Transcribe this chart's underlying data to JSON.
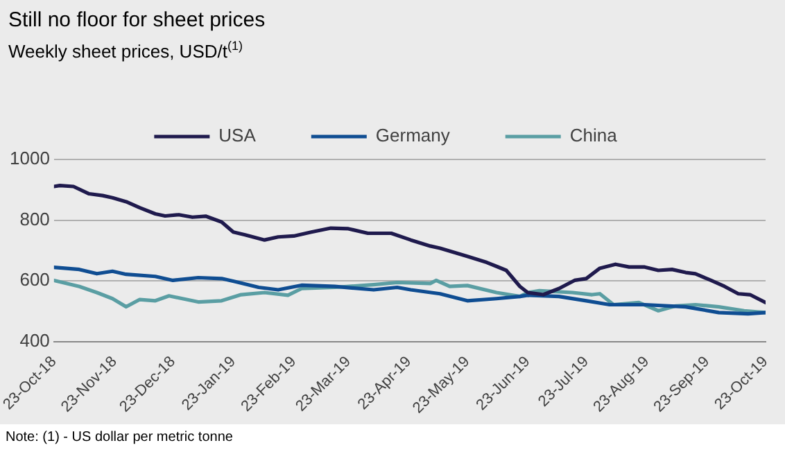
{
  "chart_data": {
    "type": "line",
    "title": "Still no floor for sheet prices",
    "subtitle": "Weekly sheet prices, USD/t$^{(1)}$",
    "annotations": [
      "Note: (1) - US dollar per metric tonne"
    ],
    "xlim": [
      "2018-10-23",
      "2019-10-23"
    ],
    "xticks": [
      {
        "value": "2018-10-23",
        "label": "23-Oct-18"
      },
      {
        "value": "2018-11-23",
        "label": "23-Nov-18"
      },
      {
        "value": "2018-12-23",
        "label": "23-Dec-18"
      },
      {
        "value": "2019-01-23",
        "label": "23-Jan-19"
      },
      {
        "value": "2019-02-23",
        "label": "23-Feb-19"
      },
      {
        "value": "2019-03-23",
        "label": "23-Mar-19"
      },
      {
        "value": "2019-04-23",
        "label": "23-Apr-19"
      },
      {
        "value": "2019-05-23",
        "label": "23-May-19"
      },
      {
        "value": "2019-06-23",
        "label": "23-Jun-19"
      },
      {
        "value": "2019-07-23",
        "label": "23-Jul-19"
      },
      {
        "value": "2019-08-23",
        "label": "23-Aug-19"
      },
      {
        "value": "2019-09-23",
        "label": "23-Sep-19"
      },
      {
        "value": "2019-10-23",
        "label": "23-Oct-19"
      }
    ],
    "ylim": [
      400,
      1000
    ],
    "yticks": [
      400,
      600,
      800,
      1000
    ],
    "grid": "y",
    "legend": "top",
    "marker": "none",
    "line_style": "solid",
    "series": [
      {
        "name": "USA",
        "color": "#1f1a4d",
        "x": [
          "2018-10-23",
          "2018-10-26",
          "2018-11-02",
          "2018-11-10",
          "2018-11-17",
          "2018-11-22",
          "2018-11-29",
          "2018-12-06",
          "2018-12-14",
          "2018-12-19",
          "2018-12-26",
          "2019-01-02",
          "2019-01-09",
          "2019-01-17",
          "2019-01-23",
          "2019-01-29",
          "2019-02-05",
          "2019-02-08",
          "2019-02-15",
          "2019-02-23",
          "2019-03-04",
          "2019-03-14",
          "2019-03-23",
          "2019-04-02",
          "2019-04-14",
          "2019-04-24",
          "2019-05-04",
          "2019-05-09",
          "2019-05-23",
          "2019-06-02",
          "2019-06-07",
          "2019-06-12",
          "2019-06-19",
          "2019-06-23",
          "2019-07-01",
          "2019-07-09",
          "2019-07-17",
          "2019-07-23",
          "2019-07-30",
          "2019-08-07",
          "2019-08-14",
          "2019-08-22",
          "2019-08-29",
          "2019-09-05",
          "2019-09-12",
          "2019-09-17",
          "2019-09-25",
          "2019-10-02",
          "2019-10-09",
          "2019-10-15",
          "2019-10-23"
        ],
        "values": [
          911,
          914,
          911,
          887,
          881,
          874,
          861,
          841,
          821,
          814,
          818,
          810,
          813,
          794,
          761,
          752,
          740,
          735,
          745,
          748,
          761,
          774,
          772,
          757,
          757,
          735,
          715,
          708,
          681,
          661,
          648,
          635,
          582,
          562,
          555,
          575,
          602,
          608,
          642,
          655,
          646,
          646,
          635,
          638,
          628,
          624,
          602,
          582,
          558,
          555,
          529
        ]
      },
      {
        "name": "Germany",
        "color": "#0f4d92",
        "x": [
          "2018-10-23",
          "2018-11-05",
          "2018-11-14",
          "2018-11-22",
          "2018-11-29",
          "2018-12-14",
          "2018-12-23",
          "2019-01-05",
          "2019-01-17",
          "2019-01-24",
          "2019-02-05",
          "2019-02-15",
          "2019-02-27",
          "2019-03-16",
          "2019-04-05",
          "2019-04-17",
          "2019-04-24",
          "2019-05-09",
          "2019-05-23",
          "2019-06-07",
          "2019-06-19",
          "2019-06-23",
          "2019-07-09",
          "2019-07-23",
          "2019-08-04",
          "2019-08-22",
          "2019-09-12",
          "2019-09-29",
          "2019-10-14",
          "2019-10-23"
        ],
        "values": [
          645,
          638,
          624,
          632,
          622,
          615,
          602,
          611,
          608,
          598,
          579,
          571,
          586,
          582,
          571,
          579,
          571,
          558,
          535,
          542,
          549,
          553,
          549,
          535,
          522,
          522,
          515,
          496,
          492,
          496
        ]
      },
      {
        "name": "China",
        "color": "#5a9ea3",
        "x": [
          "2018-10-23",
          "2018-11-05",
          "2018-11-14",
          "2018-11-22",
          "2018-11-29",
          "2018-12-06",
          "2018-12-14",
          "2018-12-21",
          "2019-01-05",
          "2019-01-17",
          "2019-01-27",
          "2019-02-08",
          "2019-02-20",
          "2019-02-27",
          "2019-03-16",
          "2019-04-05",
          "2019-04-17",
          "2019-05-04",
          "2019-05-07",
          "2019-05-14",
          "2019-05-23",
          "2019-06-07",
          "2019-06-19",
          "2019-06-23",
          "2019-06-29",
          "2019-07-16",
          "2019-07-26",
          "2019-07-30",
          "2019-08-06",
          "2019-08-19",
          "2019-08-29",
          "2019-09-07",
          "2019-09-17",
          "2019-09-29",
          "2019-10-12",
          "2019-10-23"
        ],
        "values": [
          602,
          582,
          562,
          542,
          515,
          539,
          535,
          551,
          531,
          535,
          555,
          562,
          553,
          575,
          579,
          588,
          595,
          592,
          602,
          582,
          585,
          562,
          549,
          562,
          568,
          562,
          555,
          558,
          522,
          529,
          502,
          518,
          522,
          515,
          502,
          496
        ]
      }
    ]
  }
}
